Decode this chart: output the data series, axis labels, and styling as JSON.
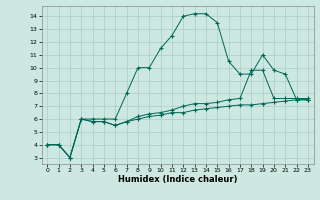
{
  "xlabel": "Humidex (Indice chaleur)",
  "background_color": "#cce8e0",
  "grid_color": "#aacccc",
  "line_color": "#006655",
  "xlim": [
    -0.5,
    23.5
  ],
  "ylim": [
    2.5,
    14.8
  ],
  "yticks": [
    3,
    4,
    5,
    6,
    7,
    8,
    9,
    10,
    11,
    12,
    13,
    14
  ],
  "xticks": [
    0,
    1,
    2,
    3,
    4,
    5,
    6,
    7,
    8,
    9,
    10,
    11,
    12,
    13,
    14,
    15,
    16,
    17,
    18,
    19,
    20,
    21,
    22,
    23
  ],
  "series1": {
    "x": [
      0,
      1,
      2,
      3,
      4,
      5,
      6,
      7,
      8,
      9,
      10,
      11,
      12,
      13,
      14,
      15,
      16,
      17,
      18,
      19,
      20,
      21,
      22,
      23
    ],
    "y": [
      4,
      4,
      3,
      6,
      6,
      6,
      6,
      8,
      10,
      10,
      11.5,
      12.5,
      14,
      14.2,
      14.2,
      13.5,
      10.5,
      9.5,
      9.5,
      11,
      9.8,
      9.5,
      7.5,
      7.5
    ]
  },
  "series2": {
    "x": [
      0,
      1,
      2,
      3,
      4,
      5,
      6,
      7,
      8,
      9,
      10,
      11,
      12,
      13,
      14,
      15,
      16,
      17,
      18,
      19,
      20,
      21,
      22,
      23
    ],
    "y": [
      4,
      4,
      3,
      6,
      5.8,
      5.8,
      5.5,
      5.8,
      6.2,
      6.4,
      6.5,
      6.7,
      7.0,
      7.2,
      7.2,
      7.3,
      7.5,
      7.6,
      9.8,
      9.8,
      7.6,
      7.6,
      7.6,
      7.6
    ]
  },
  "series3": {
    "x": [
      0,
      1,
      2,
      3,
      4,
      5,
      6,
      7,
      8,
      9,
      10,
      11,
      12,
      13,
      14,
      15,
      16,
      17,
      18,
      19,
      20,
      21,
      22,
      23
    ],
    "y": [
      4,
      4,
      3,
      6,
      5.8,
      5.8,
      5.5,
      5.8,
      6.0,
      6.2,
      6.3,
      6.5,
      6.5,
      6.7,
      6.8,
      6.9,
      7.0,
      7.1,
      7.1,
      7.2,
      7.3,
      7.4,
      7.5,
      7.5
    ]
  }
}
